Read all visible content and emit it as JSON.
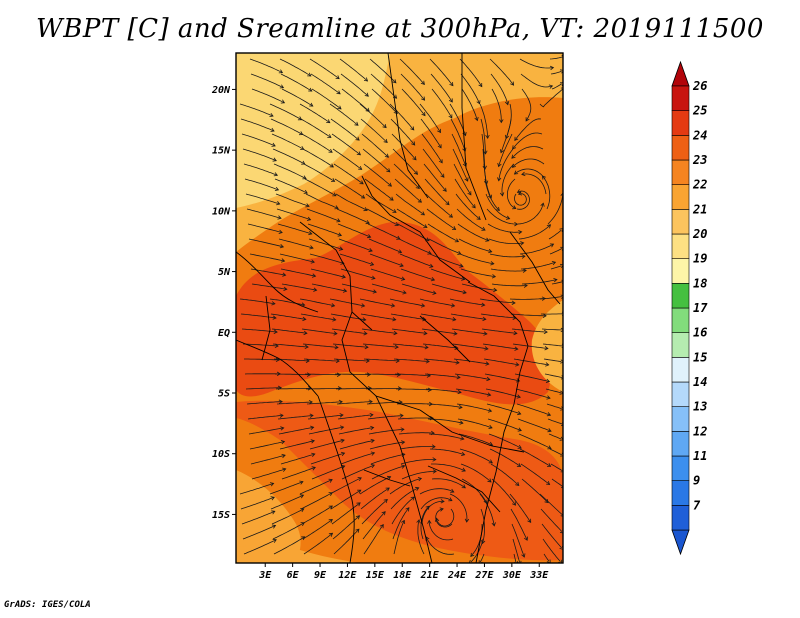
{
  "title": "WBPT [C] and Sreamline at 300hPa, VT: 2019111500",
  "footer": "GrADS: IGES/COLA",
  "map": {
    "lon_range": [
      -0.2,
      35.6
    ],
    "lat_range": [
      -19.0,
      23.0
    ],
    "lat_ticks": [
      {
        "value": 20,
        "label": "20N"
      },
      {
        "value": 15,
        "label": "15N"
      },
      {
        "value": 10,
        "label": "10N"
      },
      {
        "value": 5,
        "label": "5N"
      },
      {
        "value": 0,
        "label": "EQ"
      },
      {
        "value": -5,
        "label": "5S"
      },
      {
        "value": -10,
        "label": "10S"
      },
      {
        "value": -15,
        "label": "15S"
      }
    ],
    "lon_ticks": [
      {
        "value": 3,
        "label": "3E"
      },
      {
        "value": 6,
        "label": "6E"
      },
      {
        "value": 9,
        "label": "9E"
      },
      {
        "value": 12,
        "label": "12E"
      },
      {
        "value": 15,
        "label": "15E"
      },
      {
        "value": 18,
        "label": "18E"
      },
      {
        "value": 21,
        "label": "21E"
      },
      {
        "value": 24,
        "label": "24E"
      },
      {
        "value": 27,
        "label": "27E"
      },
      {
        "value": 30,
        "label": "30E"
      },
      {
        "value": 33,
        "label": "33E"
      }
    ],
    "fields": [
      {
        "name": "base",
        "color": "#f07c10"
      },
      {
        "name": "north-yellow",
        "color": "#f9b340"
      },
      {
        "name": "north-light",
        "color": "#fbd773"
      },
      {
        "name": "central-red",
        "color": "#ea4b12"
      },
      {
        "name": "south-red",
        "color": "#ee5a15"
      },
      {
        "name": "southwest-yellow",
        "color": "#f8a535"
      }
    ],
    "vortex_centers": [
      {
        "name": "north-cyclone",
        "lon": 30.8,
        "lat": 10.6
      },
      {
        "name": "south-anticyclone",
        "lon": 22.5,
        "lat": -14.8
      }
    ]
  },
  "colorbar": {
    "levels": [
      {
        "label": "7",
        "color": "#1f5fd8"
      },
      {
        "label": "9",
        "color": "#2a78e6"
      },
      {
        "label": "11",
        "color": "#3c8fee"
      },
      {
        "label": "12",
        "color": "#5fa8f4"
      },
      {
        "label": "13",
        "color": "#86c0f8"
      },
      {
        "label": "14",
        "color": "#b4d9fb"
      },
      {
        "label": "15",
        "color": "#e0f2fc"
      },
      {
        "label": "16",
        "color": "#b5ecb0"
      },
      {
        "label": "17",
        "color": "#82dc7c"
      },
      {
        "label": "18",
        "color": "#45c040"
      },
      {
        "label": "19",
        "color": "#fdf5a8"
      },
      {
        "label": "20",
        "color": "#fde083"
      },
      {
        "label": "21",
        "color": "#fcc45e"
      },
      {
        "label": "22",
        "color": "#f9a432"
      },
      {
        "label": "23",
        "color": "#f58420"
      },
      {
        "label": "24",
        "color": "#ee6014"
      },
      {
        "label": "25",
        "color": "#e43a12"
      },
      {
        "label": "26",
        "color": "#c8140f"
      }
    ],
    "bottom_arrow_color": "#1a56d0",
    "top_arrow_color": "#b2050a"
  }
}
